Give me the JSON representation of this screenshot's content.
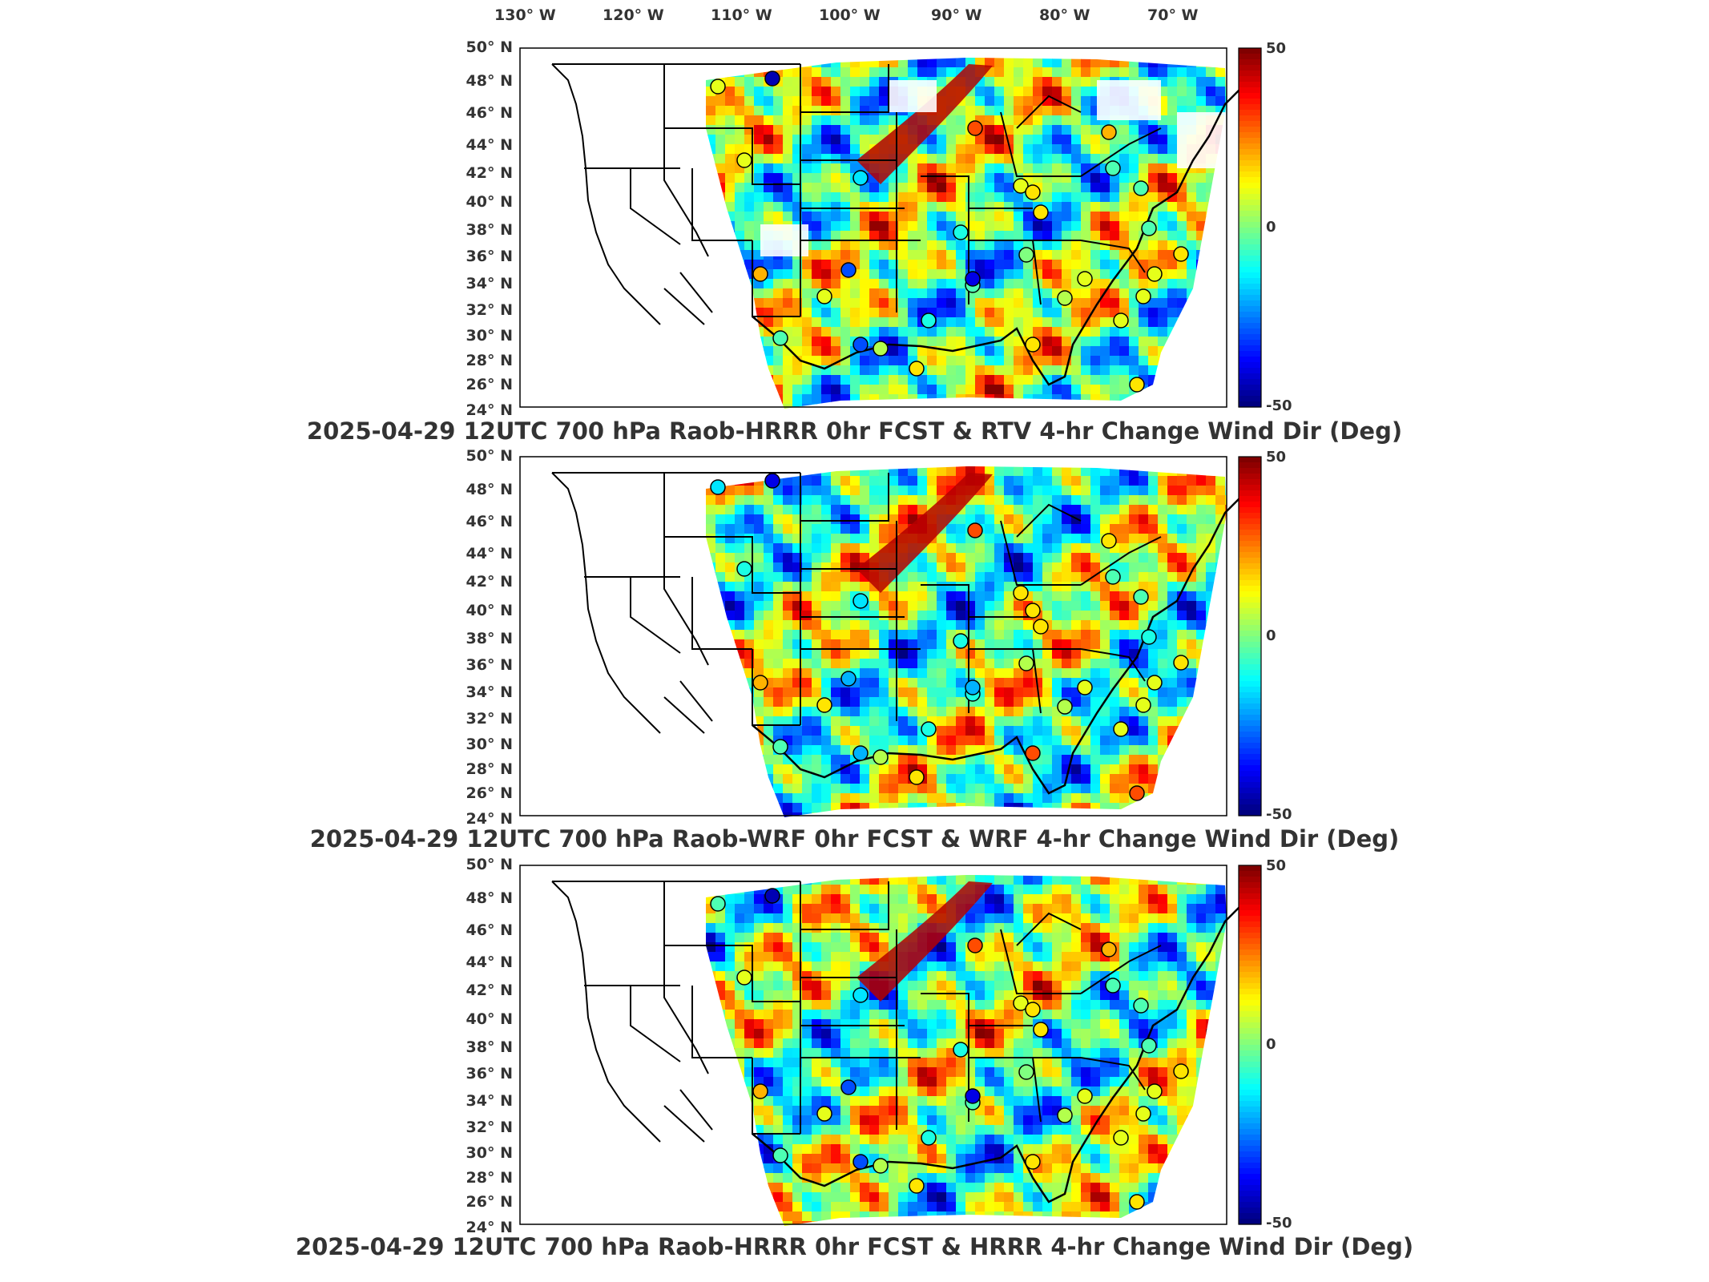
{
  "figure": {
    "lon_ticks": [
      "130° W",
      "120° W",
      "110° W",
      "100° W",
      "90° W",
      "80° W",
      "70° W"
    ],
    "lat_ticks": [
      "50° N",
      "48° N",
      "46° N",
      "44° N",
      "42° N",
      "40° N",
      "38° N",
      "36° N",
      "34° N",
      "32° N",
      "30° N",
      "28° N",
      "26° N",
      "24° N"
    ],
    "colorbar": {
      "max_label": "50",
      "mid_label": "0",
      "min_label": "-50",
      "range": [
        -50,
        50
      ],
      "colormap": "jet"
    },
    "panels": [
      {
        "title": "2025-04-29 12UTC 700 hPa Raob-HRRR 0hr FCST & RTV 4-hr Change Wind Dir (Deg)"
      },
      {
        "title": "2025-04-29 12UTC 700 hPa Raob-WRF 0hr FCST & WRF 4-hr Change Wind Dir (Deg)"
      },
      {
        "title": "2025-04-29 12UTC 700 hPa Raob-HRRR 0hr FCST & HRRR 4-hr Change Wind Dir (Deg)"
      }
    ],
    "colors": {
      "background": "#ffffff",
      "map_lines": "#000000",
      "frame": "#000000"
    }
  }
}
